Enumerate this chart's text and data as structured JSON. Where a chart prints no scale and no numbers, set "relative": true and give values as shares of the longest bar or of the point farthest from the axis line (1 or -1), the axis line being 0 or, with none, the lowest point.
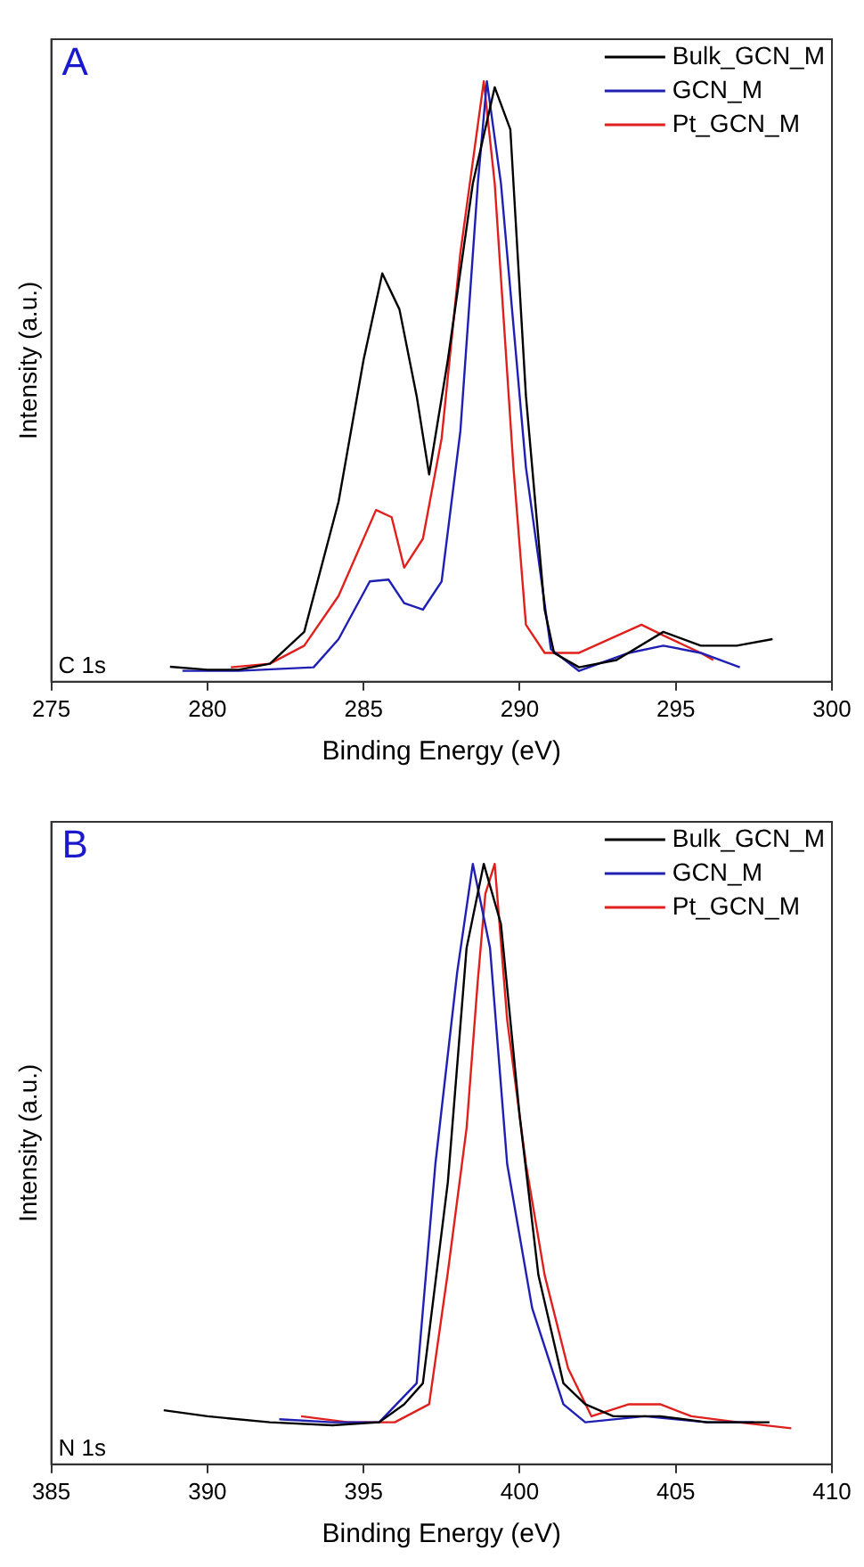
{
  "chart_data": [
    {
      "type": "line",
      "relative": true,
      "xlabel": "Binding Energy (eV)",
      "ylabel": "Intensity (a.u.)",
      "annotations": [
        "A",
        "C 1s"
      ],
      "xlim": [
        275,
        300
      ],
      "xticks": [
        275,
        280,
        285,
        290,
        295,
        300
      ],
      "legend": "top right",
      "grid": false,
      "series": [
        {
          "name": "Bulk_GCN_M",
          "color": "#000000",
          "x": [
            278.8,
            280,
            281,
            282,
            283.1,
            284.2,
            285,
            285.6,
            286.15,
            286.7,
            287.1,
            287.7,
            288.5,
            289.2,
            289.7,
            290.2,
            290.8,
            291.1,
            291.9,
            293.1,
            294.6,
            295.8,
            296.95,
            298.1
          ],
          "values": [
            0.025,
            0.02,
            0.02,
            0.03,
            0.083,
            0.3,
            0.536,
            0.68,
            0.62,
            0.476,
            0.345,
            0.536,
            0.83,
            0.99,
            0.92,
            0.476,
            0.12,
            0.048,
            0.024,
            0.036,
            0.083,
            0.06,
            0.06,
            0.071
          ]
        },
        {
          "name": "GCN_M",
          "color": "#1f1fb4",
          "x": [
            279.2,
            281,
            283.4,
            284.2,
            285.2,
            285.8,
            286.3,
            286.9,
            287.5,
            288.1,
            288.66,
            288.95,
            289.4,
            290.2,
            291,
            291.9,
            293.5,
            294.6,
            295.8,
            297.05
          ],
          "values": [
            0.018,
            0.018,
            0.024,
            0.071,
            0.167,
            0.17,
            0.131,
            0.12,
            0.167,
            0.417,
            0.83,
            1,
            0.83,
            0.357,
            0.054,
            0.018,
            0.048,
            0.06,
            0.048,
            0.024
          ]
        },
        {
          "name": "Pt_GCN_M",
          "color": "#e0201c",
          "x": [
            280.75,
            282,
            283.1,
            284.2,
            285.4,
            285.9,
            286.3,
            286.9,
            287.5,
            288.1,
            288.85,
            289.2,
            289.8,
            290.2,
            290.8,
            291.9,
            293.9,
            294.6,
            295.8,
            296.2
          ],
          "values": [
            0.024,
            0.03,
            0.06,
            0.143,
            0.286,
            0.274,
            0.19,
            0.238,
            0.405,
            0.714,
            1,
            0.83,
            0.357,
            0.095,
            0.048,
            0.048,
            0.095,
            0.077,
            0.048,
            0.036
          ]
        }
      ]
    },
    {
      "type": "line",
      "relative": true,
      "xlabel": "Binding Energy (eV)",
      "ylabel": "Intensity (a.u.)",
      "annotations": [
        "B",
        "N 1s"
      ],
      "xlim": [
        385,
        410
      ],
      "xticks": [
        385,
        390,
        395,
        400,
        405,
        410
      ],
      "legend": "top right",
      "grid": false,
      "series": [
        {
          "name": "Bulk_GCN_M",
          "color": "#000000",
          "x": [
            388.6,
            390,
            392,
            394,
            395.5,
            396.3,
            396.9,
            397.7,
            398.3,
            398.85,
            399.4,
            400,
            400.6,
            401.4,
            402.1,
            403,
            404.5,
            406,
            408
          ],
          "values": [
            0.09,
            0.08,
            0.07,
            0.065,
            0.07,
            0.1,
            0.135,
            0.47,
            0.86,
            1,
            0.9,
            0.58,
            0.315,
            0.135,
            0.1,
            0.08,
            0.08,
            0.07,
            0.07
          ]
        },
        {
          "name": "GCN_M",
          "color": "#1f1fb4",
          "x": [
            392.3,
            394,
            395.5,
            396.7,
            397.3,
            398,
            398.5,
            399.05,
            399.6,
            400.4,
            401.4,
            402.1,
            404,
            406,
            407.5
          ],
          "values": [
            0.075,
            0.07,
            0.07,
            0.135,
            0.5,
            0.82,
            1,
            0.86,
            0.5,
            0.26,
            0.1,
            0.07,
            0.08,
            0.07,
            0.07
          ]
        },
        {
          "name": "Pt_GCN_M",
          "color": "#e0201c",
          "x": [
            393,
            394.5,
            396,
            397.1,
            397.7,
            398.3,
            398.65,
            398.9,
            399.2,
            399.6,
            400.2,
            400.8,
            401.55,
            402.3,
            403.5,
            404.5,
            405.5,
            407,
            408.7
          ],
          "values": [
            0.08,
            0.07,
            0.07,
            0.1,
            0.32,
            0.56,
            0.8,
            0.95,
            1,
            0.74,
            0.5,
            0.315,
            0.16,
            0.08,
            0.1,
            0.1,
            0.08,
            0.07,
            0.06
          ]
        }
      ]
    }
  ]
}
